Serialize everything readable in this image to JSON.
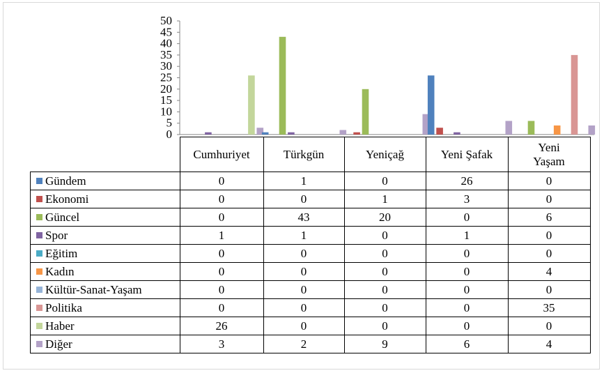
{
  "chart_data": {
    "type": "bar",
    "categories": [
      "Cumhuriyet",
      "Türkgün",
      "Yeniçağ",
      "Yeni Şafak",
      "Yeni Yaşam"
    ],
    "ylim": [
      0,
      50
    ],
    "yticks": [
      0,
      5,
      10,
      15,
      20,
      25,
      30,
      35,
      40,
      45,
      50
    ],
    "grid": false,
    "legend": "in data table",
    "series": [
      {
        "name": "Gündem",
        "color": "#4f81bd",
        "values": [
          0,
          1,
          0,
          26,
          0
        ]
      },
      {
        "name": "Ekonomi",
        "color": "#c0504d",
        "values": [
          0,
          0,
          1,
          3,
          0
        ]
      },
      {
        "name": "Güncel",
        "color": "#9bbb59",
        "values": [
          0,
          43,
          20,
          0,
          6
        ]
      },
      {
        "name": "Spor",
        "color": "#8064a2",
        "values": [
          1,
          1,
          0,
          1,
          0
        ]
      },
      {
        "name": "Eğitim",
        "color": "#4bacc6",
        "values": [
          0,
          0,
          0,
          0,
          0
        ]
      },
      {
        "name": "Kadın",
        "color": "#f79646",
        "values": [
          0,
          0,
          0,
          0,
          4
        ]
      },
      {
        "name": "Kültür-Sanat-Yaşam",
        "color": "#95b3d7",
        "values": [
          0,
          0,
          0,
          0,
          0
        ]
      },
      {
        "name": "Politika",
        "color": "#d99694",
        "values": [
          0,
          0,
          0,
          0,
          35
        ]
      },
      {
        "name": "Haber",
        "color": "#c3d69b",
        "values": [
          26,
          0,
          0,
          0,
          0
        ]
      },
      {
        "name": "Diğer",
        "color": "#b3a2c7",
        "values": [
          3,
          2,
          9,
          6,
          4
        ]
      }
    ]
  }
}
